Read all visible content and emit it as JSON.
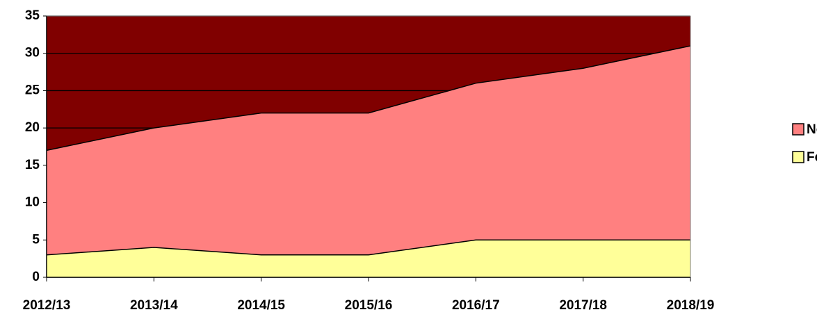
{
  "chart_data": {
    "type": "area",
    "stacked": true,
    "categories": [
      "2012/13",
      "2013/14",
      "2014/15",
      "2015/16",
      "2016/17",
      "2017/18",
      "2018/19"
    ],
    "series": [
      {
        "name": "Férfi",
        "color": "#ffff99",
        "values": [
          3,
          4,
          3,
          3,
          5,
          5,
          5
        ]
      },
      {
        "name": "Nő",
        "color": "#ff8080",
        "values": [
          14,
          16,
          19,
          19,
          21,
          23,
          26
        ]
      }
    ],
    "ylim": [
      0,
      35
    ],
    "yticks": [
      0,
      5,
      10,
      15,
      20,
      25,
      30,
      35
    ],
    "grid": true,
    "plot_background": "#800000",
    "legend": "right"
  }
}
